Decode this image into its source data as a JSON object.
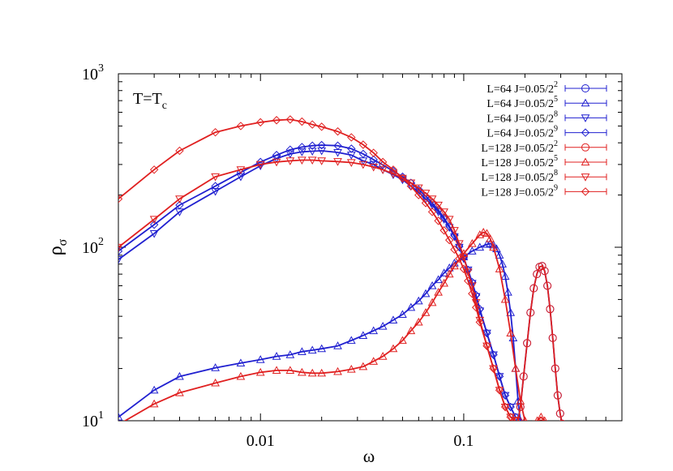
{
  "chart_data": {
    "type": "line",
    "annotation": {
      "base": "T=T",
      "sub": "c"
    },
    "xlabel": "ω",
    "ylabel": {
      "base": "ρ",
      "sub": "σ"
    },
    "x_scale": "log",
    "y_scale": "log",
    "xlim": [
      0.002,
      0.6
    ],
    "ylim": [
      10,
      1000
    ],
    "grid": false,
    "legend_position": "top-right",
    "x_ticks": [
      {
        "value": 0.01,
        "label": "0.01"
      },
      {
        "value": 0.1,
        "label": "0.1"
      }
    ],
    "y_ticks": [
      {
        "value": 10,
        "base": "10",
        "exp": "1"
      },
      {
        "value": 100,
        "base": "10",
        "exp": "2"
      },
      {
        "value": 1000,
        "base": "10",
        "exp": "3"
      }
    ],
    "series": [
      {
        "name": "L=64 J=0.05/2",
        "exp": "2",
        "color": "#2020d0",
        "marker": "circle",
        "points": [
          [
            0.185,
            10
          ],
          [
            0.19,
            12
          ],
          [
            0.197,
            18
          ],
          [
            0.205,
            28
          ],
          [
            0.213,
            42
          ],
          [
            0.221,
            58
          ],
          [
            0.229,
            70
          ],
          [
            0.236,
            77
          ],
          [
            0.243,
            78
          ],
          [
            0.25,
            73
          ],
          [
            0.258,
            60
          ],
          [
            0.266,
            44
          ],
          [
            0.274,
            30
          ],
          [
            0.282,
            20
          ],
          [
            0.29,
            14
          ],
          [
            0.298,
            11
          ],
          [
            0.305,
            9.6
          ]
        ]
      },
      {
        "name": "L=64 J=0.05/2",
        "exp": "5",
        "color": "#2020d0",
        "marker": "triangle-up",
        "points": [
          [
            0.002,
            10.5
          ],
          [
            0.003,
            15
          ],
          [
            0.004,
            18
          ],
          [
            0.006,
            20.2
          ],
          [
            0.008,
            21.5
          ],
          [
            0.01,
            22.5
          ],
          [
            0.012,
            23.5
          ],
          [
            0.014,
            24
          ],
          [
            0.016,
            25
          ],
          [
            0.018,
            25.5
          ],
          [
            0.02,
            26
          ],
          [
            0.024,
            27
          ],
          [
            0.028,
            29
          ],
          [
            0.032,
            31
          ],
          [
            0.036,
            33
          ],
          [
            0.04,
            35
          ],
          [
            0.045,
            38
          ],
          [
            0.05,
            41
          ],
          [
            0.055,
            45
          ],
          [
            0.06,
            49
          ],
          [
            0.065,
            54
          ],
          [
            0.07,
            60
          ],
          [
            0.075,
            65
          ],
          [
            0.08,
            71
          ],
          [
            0.085,
            76
          ],
          [
            0.09,
            81
          ],
          [
            0.1,
            88
          ],
          [
            0.11,
            95
          ],
          [
            0.12,
            100
          ],
          [
            0.13,
            104
          ],
          [
            0.135,
            105
          ],
          [
            0.14,
            103
          ],
          [
            0.145,
            98
          ],
          [
            0.15,
            90
          ],
          [
            0.155,
            80
          ],
          [
            0.16,
            68
          ],
          [
            0.165,
            55
          ],
          [
            0.17,
            42
          ],
          [
            0.175,
            30
          ],
          [
            0.18,
            20
          ],
          [
            0.185,
            13
          ],
          [
            0.19,
            10
          ]
        ]
      },
      {
        "name": "L=64 J=0.05/2",
        "exp": "8",
        "color": "#2020d0",
        "marker": "triangle-down",
        "points": [
          [
            0.002,
            85
          ],
          [
            0.003,
            120
          ],
          [
            0.004,
            160
          ],
          [
            0.006,
            210
          ],
          [
            0.008,
            255
          ],
          [
            0.01,
            295
          ],
          [
            0.012,
            325
          ],
          [
            0.014,
            345
          ],
          [
            0.016,
            355
          ],
          [
            0.018,
            358
          ],
          [
            0.02,
            360
          ],
          [
            0.024,
            352
          ],
          [
            0.028,
            340
          ],
          [
            0.032,
            315
          ],
          [
            0.036,
            300
          ],
          [
            0.04,
            280
          ],
          [
            0.045,
            262
          ],
          [
            0.05,
            245
          ],
          [
            0.055,
            225
          ],
          [
            0.06,
            208
          ],
          [
            0.065,
            190
          ],
          [
            0.07,
            175
          ],
          [
            0.075,
            160
          ],
          [
            0.08,
            145
          ],
          [
            0.085,
            130
          ],
          [
            0.09,
            115
          ],
          [
            0.095,
            100
          ],
          [
            0.1,
            86
          ],
          [
            0.105,
            74
          ],
          [
            0.11,
            62
          ],
          [
            0.115,
            52
          ],
          [
            0.12,
            43
          ],
          [
            0.13,
            32
          ],
          [
            0.14,
            24
          ],
          [
            0.15,
            18
          ],
          [
            0.16,
            14
          ],
          [
            0.17,
            12
          ],
          [
            0.18,
            10.5
          ]
        ]
      },
      {
        "name": "L=64 J=0.05/2",
        "exp": "9",
        "color": "#2020d0",
        "marker": "diamond",
        "points": [
          [
            0.002,
            95
          ],
          [
            0.003,
            135
          ],
          [
            0.004,
            175
          ],
          [
            0.006,
            225
          ],
          [
            0.008,
            270
          ],
          [
            0.01,
            310
          ],
          [
            0.012,
            340
          ],
          [
            0.014,
            365
          ],
          [
            0.016,
            378
          ],
          [
            0.018,
            385
          ],
          [
            0.02,
            388
          ],
          [
            0.024,
            385
          ],
          [
            0.028,
            370
          ],
          [
            0.032,
            345
          ],
          [
            0.036,
            320
          ],
          [
            0.04,
            298
          ],
          [
            0.045,
            275
          ],
          [
            0.05,
            255
          ],
          [
            0.055,
            235
          ],
          [
            0.06,
            215
          ],
          [
            0.065,
            197
          ],
          [
            0.07,
            180
          ],
          [
            0.075,
            164
          ],
          [
            0.08,
            148
          ],
          [
            0.085,
            132
          ],
          [
            0.09,
            117
          ],
          [
            0.095,
            101
          ],
          [
            0.1,
            87
          ],
          [
            0.105,
            74
          ],
          [
            0.11,
            63
          ],
          [
            0.115,
            53
          ],
          [
            0.12,
            44
          ],
          [
            0.13,
            32
          ],
          [
            0.14,
            24
          ],
          [
            0.15,
            18
          ],
          [
            0.16,
            14
          ],
          [
            0.17,
            12
          ],
          [
            0.18,
            10.5
          ]
        ]
      },
      {
        "name": "L=128 J=0.05/2",
        "exp": "2",
        "color": "#e02020",
        "marker": "circle",
        "points": [
          [
            0.185,
            10
          ],
          [
            0.19,
            12
          ],
          [
            0.197,
            18
          ],
          [
            0.205,
            28
          ],
          [
            0.213,
            42
          ],
          [
            0.221,
            58
          ],
          [
            0.229,
            70
          ],
          [
            0.236,
            77
          ],
          [
            0.243,
            78
          ],
          [
            0.25,
            73
          ],
          [
            0.258,
            60
          ],
          [
            0.266,
            44
          ],
          [
            0.274,
            30
          ],
          [
            0.282,
            20
          ],
          [
            0.29,
            14
          ],
          [
            0.298,
            11
          ],
          [
            0.305,
            9.6
          ]
        ]
      },
      {
        "name": "L=128 J=0.05/2",
        "exp": "5",
        "color": "#e02020",
        "marker": "triangle-up",
        "points": [
          [
            0.002,
            9.5
          ],
          [
            0.003,
            12.5
          ],
          [
            0.004,
            14.5
          ],
          [
            0.006,
            16.5
          ],
          [
            0.008,
            18
          ],
          [
            0.01,
            19
          ],
          [
            0.012,
            19.5
          ],
          [
            0.014,
            19.5
          ],
          [
            0.016,
            19
          ],
          [
            0.018,
            18.8
          ],
          [
            0.02,
            18.8
          ],
          [
            0.024,
            19.2
          ],
          [
            0.028,
            19.8
          ],
          [
            0.032,
            20.5
          ],
          [
            0.036,
            22
          ],
          [
            0.04,
            23.5
          ],
          [
            0.045,
            26
          ],
          [
            0.05,
            29
          ],
          [
            0.055,
            33
          ],
          [
            0.06,
            37
          ],
          [
            0.065,
            42
          ],
          [
            0.07,
            48
          ],
          [
            0.075,
            55
          ],
          [
            0.08,
            62
          ],
          [
            0.085,
            70
          ],
          [
            0.09,
            78
          ],
          [
            0.1,
            92
          ],
          [
            0.11,
            105
          ],
          [
            0.12,
            118
          ],
          [
            0.125,
            122
          ],
          [
            0.13,
            120
          ],
          [
            0.135,
            112
          ],
          [
            0.14,
            100
          ],
          [
            0.15,
            75
          ],
          [
            0.16,
            50
          ],
          [
            0.17,
            32
          ],
          [
            0.18,
            20
          ],
          [
            0.19,
            13
          ],
          [
            0.2,
            10
          ],
          [
            0.22,
            9.5
          ],
          [
            0.23,
            10
          ],
          [
            0.24,
            10.5
          ],
          [
            0.25,
            10
          ]
        ]
      },
      {
        "name": "L=128 J=0.05/2",
        "exp": "8",
        "color": "#e02020",
        "marker": "triangle-down",
        "points": [
          [
            0.002,
            100
          ],
          [
            0.003,
            145
          ],
          [
            0.004,
            190
          ],
          [
            0.006,
            255
          ],
          [
            0.008,
            280
          ],
          [
            0.01,
            300
          ],
          [
            0.012,
            310
          ],
          [
            0.014,
            315
          ],
          [
            0.016,
            318
          ],
          [
            0.018,
            318
          ],
          [
            0.02,
            315
          ],
          [
            0.024,
            312
          ],
          [
            0.028,
            308
          ],
          [
            0.032,
            300
          ],
          [
            0.036,
            290
          ],
          [
            0.04,
            280
          ],
          [
            0.045,
            265
          ],
          [
            0.05,
            250
          ],
          [
            0.055,
            235
          ],
          [
            0.06,
            220
          ],
          [
            0.065,
            205
          ],
          [
            0.07,
            190
          ],
          [
            0.075,
            175
          ],
          [
            0.08,
            160
          ],
          [
            0.085,
            145
          ],
          [
            0.09,
            125
          ],
          [
            0.095,
            105
          ],
          [
            0.1,
            88
          ],
          [
            0.105,
            72
          ],
          [
            0.11,
            60
          ],
          [
            0.115,
            48
          ],
          [
            0.12,
            38
          ],
          [
            0.13,
            27
          ],
          [
            0.14,
            20
          ],
          [
            0.15,
            15
          ],
          [
            0.16,
            12
          ],
          [
            0.17,
            10.5
          ],
          [
            0.18,
            10
          ]
        ]
      },
      {
        "name": "L=128 J=0.05/2",
        "exp": "9",
        "color": "#e02020",
        "marker": "diamond",
        "points": [
          [
            0.002,
            190
          ],
          [
            0.003,
            280
          ],
          [
            0.004,
            360
          ],
          [
            0.006,
            460
          ],
          [
            0.008,
            500
          ],
          [
            0.01,
            525
          ],
          [
            0.012,
            540
          ],
          [
            0.014,
            545
          ],
          [
            0.016,
            530
          ],
          [
            0.018,
            510
          ],
          [
            0.02,
            495
          ],
          [
            0.024,
            465
          ],
          [
            0.028,
            430
          ],
          [
            0.032,
            390
          ],
          [
            0.036,
            350
          ],
          [
            0.04,
            310
          ],
          [
            0.045,
            280
          ],
          [
            0.05,
            250
          ],
          [
            0.055,
            225
          ],
          [
            0.06,
            200
          ],
          [
            0.065,
            180
          ],
          [
            0.07,
            160
          ],
          [
            0.075,
            142
          ],
          [
            0.08,
            125
          ],
          [
            0.085,
            110
          ],
          [
            0.09,
            97
          ],
          [
            0.095,
            86
          ],
          [
            0.1,
            75
          ],
          [
            0.105,
            64
          ],
          [
            0.11,
            54
          ],
          [
            0.115,
            45
          ],
          [
            0.12,
            37
          ],
          [
            0.13,
            27
          ],
          [
            0.14,
            20
          ],
          [
            0.15,
            15
          ],
          [
            0.16,
            12
          ],
          [
            0.17,
            10.5
          ],
          [
            0.18,
            10
          ]
        ]
      }
    ]
  }
}
